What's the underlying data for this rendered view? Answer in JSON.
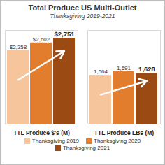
{
  "chart_data": {
    "type": "bar",
    "title": "Total Produce US Multi-Outlet",
    "subtitle": "Thanksgiving 2019-2021",
    "categories": [
      "TTL Produce $'s (M)",
      "TTL Produce LBs (M)"
    ],
    "series": [
      {
        "name": "Thanksgiving 2019",
        "color": "#f7c59c",
        "values": [
          2358,
          1564
        ],
        "value_labels": [
          "$2,358",
          "1,564"
        ]
      },
      {
        "name": "Thanksgiving 2020",
        "color": "#e27d2e",
        "values": [
          2602,
          1691
        ],
        "value_labels": [
          "$2,602",
          "1,691"
        ]
      },
      {
        "name": "Thanksgiving 2021",
        "color": "#9c4a14",
        "values": [
          2751,
          1628
        ],
        "value_labels": [
          "$2,751",
          "1,628"
        ]
      }
    ],
    "ylim": [
      0,
      3000
    ],
    "grid": false,
    "data_labels": true,
    "tick_labels": "x",
    "legend": "bottom"
  }
}
